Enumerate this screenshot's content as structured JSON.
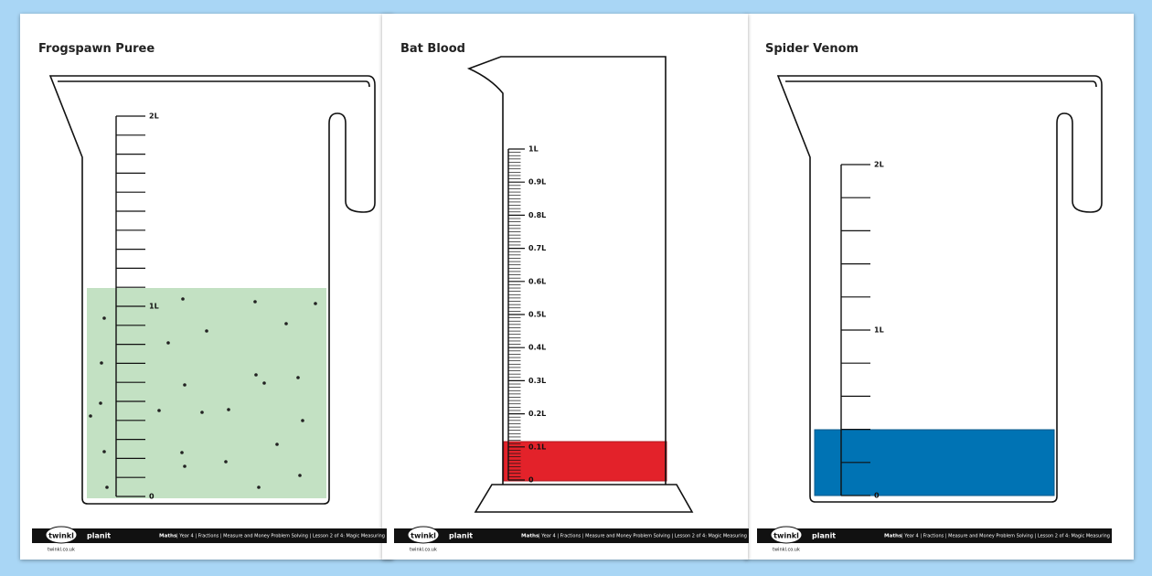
{
  "pages": [
    {
      "title": "Frogspawn Puree",
      "scale_labels": [
        "2L",
        "1L",
        "0"
      ]
    },
    {
      "title": "Bat Blood",
      "scale_labels": [
        "1L",
        "0.9L",
        "0.8L",
        "0.7L",
        "0.6L",
        "0.5L",
        "0.4L",
        "0.3L",
        "0.2L",
        "0.1L",
        "0"
      ]
    },
    {
      "title": "Spider Venom",
      "scale_labels": [
        "2L",
        "1L",
        "0"
      ]
    }
  ],
  "footer": {
    "logo": "twinkl",
    "brand": "planit",
    "site": "twinkl.co.uk",
    "subject": "Maths",
    "text": "| Year 4 | Fractions | Measure and Money Problem Solving | Lesson 2 of 4: Magic Measuring"
  }
}
